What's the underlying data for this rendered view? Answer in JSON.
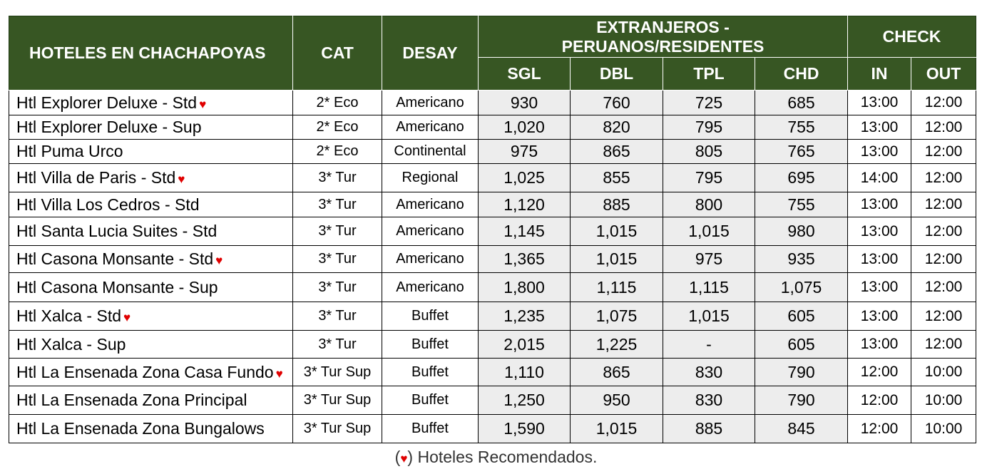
{
  "table": {
    "headers": {
      "hotel": "HOTELES EN CHACHAPOYAS",
      "cat": "CAT",
      "desay": "DESAY",
      "group_line1": "EXTRANJEROS -",
      "group_line2": "PERUANOS/RESIDENTES",
      "check": "CHECK",
      "sgl": "SGL",
      "dbl": "DBL",
      "tpl": "TPL",
      "chd": "CHD",
      "in": "IN",
      "out": "OUT"
    },
    "heart_symbol": "♥",
    "heart_color": "#e00000",
    "header_color": "#375623",
    "price_cell_color": "#ededed",
    "rows": [
      {
        "name": "Htl Explorer Deluxe - Std",
        "recommended": true,
        "cat": "2* Eco",
        "desay": "Americano",
        "sgl": "930",
        "dbl": "760",
        "tpl": "725",
        "chd": "685",
        "in": "13:00",
        "out": "12:00"
      },
      {
        "name": "Htl Explorer Deluxe - Sup",
        "recommended": false,
        "cat": "2* Eco",
        "desay": "Americano",
        "sgl": "1,020",
        "dbl": "820",
        "tpl": "795",
        "chd": "755",
        "in": "13:00",
        "out": "12:00"
      },
      {
        "name": "Htl Puma Urco",
        "recommended": false,
        "cat": "2* Eco",
        "desay": "Continental",
        "sgl": "975",
        "dbl": "865",
        "tpl": "805",
        "chd": "765",
        "in": "13:00",
        "out": "12:00"
      },
      {
        "name": "Htl Villa de Paris - Std",
        "recommended": true,
        "cat": "3* Tur",
        "desay": "Regional",
        "sgl": "1,025",
        "dbl": "855",
        "tpl": "795",
        "chd": "695",
        "in": "14:00",
        "out": "12:00"
      },
      {
        "name": "Htl Villa Los Cedros - Std",
        "recommended": false,
        "cat": "3* Tur",
        "desay": "Americano",
        "sgl": "1,120",
        "dbl": "885",
        "tpl": "800",
        "chd": "755",
        "in": "13:00",
        "out": "12:00"
      },
      {
        "name": "Htl Santa Lucia Suites - Std",
        "recommended": false,
        "cat": "3* Tur",
        "desay": "Americano",
        "sgl": "1,145",
        "dbl": "1,015",
        "tpl": "1,015",
        "chd": "980",
        "in": "13:00",
        "out": "12:00"
      },
      {
        "name": "Htl Casona Monsante - Std",
        "recommended": true,
        "cat": "3* Tur",
        "desay": "Americano",
        "sgl": "1,365",
        "dbl": "1,015",
        "tpl": "975",
        "chd": "935",
        "in": "13:00",
        "out": "12:00"
      },
      {
        "name": "Htl Casona Monsante - Sup",
        "recommended": false,
        "cat": "3* Tur",
        "desay": "Americano",
        "sgl": "1,800",
        "dbl": "1,115",
        "tpl": "1,115",
        "chd": "1,075",
        "in": "13:00",
        "out": "12:00"
      },
      {
        "name": "Htl Xalca - Std",
        "recommended": true,
        "cat": "3* Tur",
        "desay": "Buffet",
        "sgl": "1,235",
        "dbl": "1,075",
        "tpl": "1,015",
        "chd": "605",
        "in": "13:00",
        "out": "12:00"
      },
      {
        "name": "Htl Xalca - Sup",
        "recommended": false,
        "cat": "3* Tur",
        "desay": "Buffet",
        "sgl": "2,015",
        "dbl": "1,225",
        "tpl": "-",
        "chd": "605",
        "in": "13:00",
        "out": "12:00"
      },
      {
        "name": "Htl La Ensenada Zona Casa Fundo",
        "recommended": true,
        "cat": "3* Tur Sup",
        "desay": "Buffet",
        "sgl": "1,110",
        "dbl": "865",
        "tpl": "830",
        "chd": "790",
        "in": "12:00",
        "out": "10:00"
      },
      {
        "name": "Htl La Ensenada Zona Principal",
        "recommended": false,
        "cat": "3* Tur Sup",
        "desay": "Buffet",
        "sgl": "1,250",
        "dbl": "950",
        "tpl": "830",
        "chd": "790",
        "in": "12:00",
        "out": "10:00"
      },
      {
        "name": "Htl La Ensenada Zona Bungalows",
        "recommended": false,
        "cat": "3* Tur Sup",
        "desay": "Buffet",
        "sgl": "1,590",
        "dbl": "1,015",
        "tpl": "885",
        "chd": "845",
        "in": "12:00",
        "out": "10:00"
      }
    ]
  },
  "footnote": {
    "open": "(",
    "symbol": "♥",
    "close_text": ") Hoteles Recomendados."
  }
}
